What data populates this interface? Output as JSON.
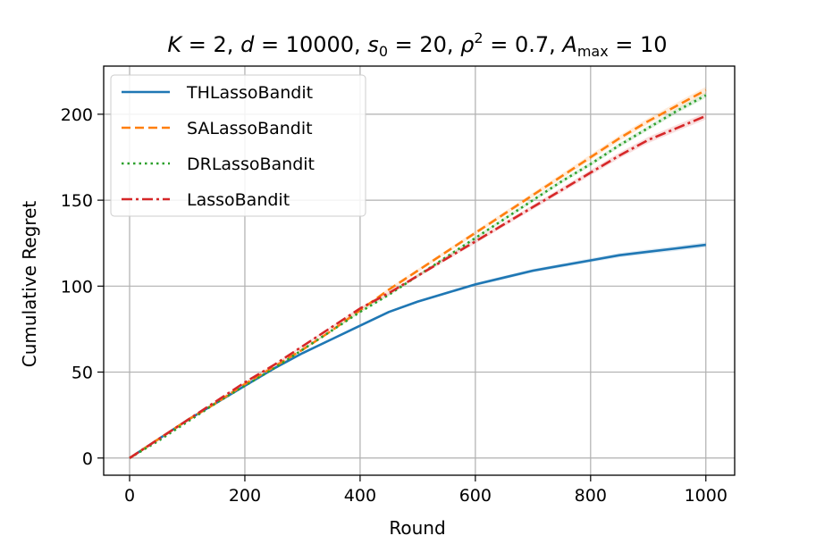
{
  "chart_data": {
    "type": "line",
    "title": {
      "k_sym": "K",
      "k_val": " = 2, ",
      "d_sym": "d",
      "d_val": " = 10000, ",
      "s_sym": "s",
      "s_sub": "0",
      "s_val": " = 20, ",
      "rho_sym": "ρ",
      "rho_sup": "2",
      "rho_val": " = 0.7, ",
      "a_sym": "A",
      "a_sub": "max",
      "a_val": " = 10"
    },
    "xlabel": "Round",
    "ylabel": "Cumulative Regret",
    "xlim": [
      -45,
      1050
    ],
    "ylim": [
      -10,
      228
    ],
    "xticks": [
      0,
      200,
      400,
      600,
      800,
      1000
    ],
    "yticks": [
      0,
      50,
      100,
      150,
      200
    ],
    "grid": true,
    "legend_position": "top-left",
    "series": [
      {
        "name": "THLassoBandit",
        "color": "#1f77b4",
        "dash": "solid",
        "band": 1.5,
        "x": [
          0,
          50,
          100,
          150,
          200,
          250,
          300,
          350,
          400,
          450,
          500,
          550,
          600,
          650,
          700,
          750,
          800,
          850,
          900,
          950,
          1000
        ],
        "y": [
          0,
          11,
          22,
          32,
          42,
          52,
          61,
          69,
          77,
          85,
          91,
          96,
          101,
          105,
          109,
          112,
          115,
          118,
          120,
          122,
          124
        ]
      },
      {
        "name": "SALassoBandit",
        "color": "#ff7f0e",
        "dash": "dashed",
        "band": 2,
        "x": [
          0,
          50,
          100,
          150,
          200,
          250,
          300,
          350,
          400,
          450,
          500,
          550,
          600,
          650,
          700,
          750,
          800,
          850,
          900,
          950,
          1000
        ],
        "y": [
          0,
          11,
          22,
          32,
          43,
          53,
          63,
          74,
          86,
          98,
          109,
          120,
          131,
          142,
          153,
          164,
          175,
          186,
          196,
          205,
          214
        ]
      },
      {
        "name": "DRLassoBandit",
        "color": "#2ca02c",
        "dash": "dotted",
        "band": 1.5,
        "x": [
          0,
          50,
          100,
          150,
          200,
          250,
          300,
          350,
          400,
          450,
          500,
          550,
          600,
          650,
          700,
          750,
          800,
          850,
          900,
          950,
          1000
        ],
        "y": [
          0,
          10,
          21,
          32,
          42,
          52,
          63,
          74,
          85,
          95,
          106,
          117,
          128,
          139,
          150,
          161,
          171,
          182,
          192,
          202,
          211
        ]
      },
      {
        "name": "LassoBandit",
        "color": "#d62728",
        "dash": "dashdot",
        "band": 2,
        "x": [
          0,
          50,
          100,
          150,
          200,
          250,
          300,
          350,
          400,
          450,
          500,
          550,
          600,
          650,
          700,
          750,
          800,
          850,
          900,
          950,
          1000
        ],
        "y": [
          0,
          11,
          22,
          33,
          44,
          54,
          65,
          76,
          87,
          96,
          106,
          116,
          126,
          136,
          146,
          156,
          166,
          176,
          185,
          192,
          199
        ]
      }
    ]
  }
}
